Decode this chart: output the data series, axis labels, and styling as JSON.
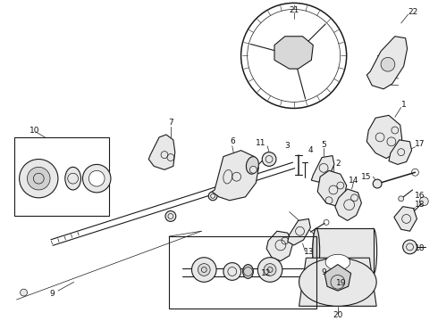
{
  "bg_color": "#ffffff",
  "line_color": "#1a1a1a",
  "fig_width": 4.9,
  "fig_height": 3.6,
  "dpi": 100,
  "part_font_size": 6.5,
  "label_color": "#111111",
  "lw_thin": 0.5,
  "lw_med": 0.8,
  "lw_thick": 1.1,
  "gray_light": "#e8e8e8",
  "gray_mid": "#c8c8c8",
  "gray_dark": "#aaaaaa"
}
